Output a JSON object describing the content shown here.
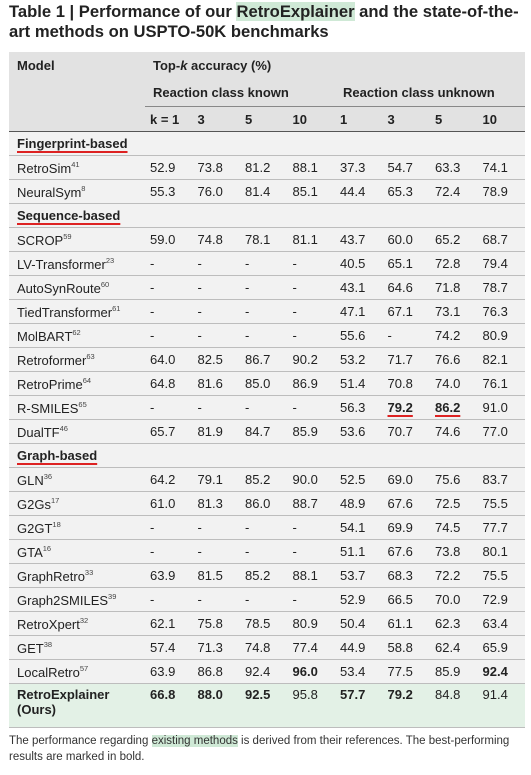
{
  "title": {
    "parts": [
      "Table 1 | Performance of our ",
      "RetroExplainer",
      " and the state-of-the-art methods on USPTO-50K benchmarks"
    ]
  },
  "header": {
    "model": "Model",
    "topk": [
      "Top-",
      "k",
      " accuracy (%)"
    ],
    "known": "Reaction class known",
    "unknown": "Reaction class unknown",
    "ks": [
      "k = 1",
      "3",
      "5",
      "10",
      "1",
      "3",
      "5",
      "10"
    ]
  },
  "groups": [
    {
      "name": "Fingerprint-based",
      "rows": [
        {
          "model": "RetroSim",
          "ref": "41",
          "values": [
            "52.9",
            "73.8",
            "81.2",
            "88.1",
            "37.3",
            "54.7",
            "63.3",
            "74.1"
          ]
        },
        {
          "model": "NeuralSym",
          "ref": "8",
          "values": [
            "55.3",
            "76.0",
            "81.4",
            "85.1",
            "44.4",
            "65.3",
            "72.4",
            "78.9"
          ]
        }
      ]
    },
    {
      "name": "Sequence-based",
      "rows": [
        {
          "model": "SCROP",
          "ref": "59",
          "values": [
            "59.0",
            "74.8",
            "78.1",
            "81.1",
            "43.7",
            "60.0",
            "65.2",
            "68.7"
          ]
        },
        {
          "model": "LV-Transformer",
          "ref": "23",
          "values": [
            "-",
            "-",
            "-",
            "-",
            "40.5",
            "65.1",
            "72.8",
            "79.4"
          ]
        },
        {
          "model": "AutoSynRoute",
          "ref": "60",
          "values": [
            "-",
            "-",
            "-",
            "-",
            "43.1",
            "64.6",
            "71.8",
            "78.7"
          ]
        },
        {
          "model": "TiedTransformer",
          "ref": "61",
          "values": [
            "-",
            "-",
            "-",
            "-",
            "47.1",
            "67.1",
            "73.1",
            "76.3"
          ]
        },
        {
          "model": "MolBART",
          "ref": "62",
          "values": [
            "-",
            "-",
            "-",
            "-",
            "55.6",
            "-",
            "74.2",
            "80.9"
          ]
        },
        {
          "model": "Retroformer",
          "ref": "63",
          "values": [
            "64.0",
            "82.5",
            "86.7",
            "90.2",
            "53.2",
            "71.7",
            "76.6",
            "82.1"
          ]
        },
        {
          "model": "RetroPrime",
          "ref": "64",
          "values": [
            "64.8",
            "81.6",
            "85.0",
            "86.9",
            "51.4",
            "70.8",
            "74.0",
            "76.1"
          ]
        },
        {
          "model": "R-SMILES",
          "ref": "65",
          "values": [
            "-",
            "-",
            "-",
            "-",
            "56.3",
            "79.2",
            "86.2",
            "91.0"
          ],
          "bold": [
            5,
            6
          ],
          "underline": [
            5,
            6
          ]
        },
        {
          "model": "DualTF",
          "ref": "46",
          "values": [
            "65.7",
            "81.9",
            "84.7",
            "85.9",
            "53.6",
            "70.7",
            "74.6",
            "77.0"
          ]
        }
      ]
    },
    {
      "name": "Graph-based",
      "rows": [
        {
          "model": "GLN",
          "ref": "36",
          "values": [
            "64.2",
            "79.1",
            "85.2",
            "90.0",
            "52.5",
            "69.0",
            "75.6",
            "83.7"
          ]
        },
        {
          "model": "G2Gs",
          "ref": "17",
          "values": [
            "61.0",
            "81.3",
            "86.0",
            "88.7",
            "48.9",
            "67.6",
            "72.5",
            "75.5"
          ]
        },
        {
          "model": "G2GT",
          "ref": "18",
          "values": [
            "-",
            "-",
            "-",
            "-",
            "54.1",
            "69.9",
            "74.5",
            "77.7"
          ]
        },
        {
          "model": "GTA",
          "ref": "16",
          "values": [
            "-",
            "-",
            "-",
            "-",
            "51.1",
            "67.6",
            "73.8",
            "80.1"
          ]
        },
        {
          "model": "GraphRetro",
          "ref": "33",
          "values": [
            "63.9",
            "81.5",
            "85.2",
            "88.1",
            "53.7",
            "68.3",
            "72.2",
            "75.5"
          ]
        },
        {
          "model": "Graph2SMILES",
          "ref": "39",
          "values": [
            "-",
            "-",
            "-",
            "-",
            "52.9",
            "66.5",
            "70.0",
            "72.9"
          ]
        },
        {
          "model": "RetroXpert",
          "ref": "32",
          "values": [
            "62.1",
            "75.8",
            "78.5",
            "80.9",
            "50.4",
            "61.1",
            "62.3",
            "63.4"
          ]
        },
        {
          "model": "GET",
          "ref": "38",
          "values": [
            "57.4",
            "71.3",
            "74.8",
            "77.4",
            "44.9",
            "58.8",
            "62.4",
            "65.9"
          ]
        },
        {
          "model": "LocalRetro",
          "ref": "57",
          "values": [
            "63.9",
            "86.8",
            "92.4",
            "96.0",
            "53.4",
            "77.5",
            "85.9",
            "92.4"
          ],
          "bold": [
            3,
            7
          ]
        },
        {
          "model": "RetroExplainer",
          "note": "(Ours)",
          "values": [
            "66.8",
            "88.0",
            "92.5",
            "95.8",
            "57.7",
            "79.2",
            "84.8",
            "91.4"
          ],
          "bold": [
            0,
            1,
            2,
            4,
            5
          ],
          "highlight": true
        }
      ]
    }
  ],
  "footnote": {
    "parts": [
      "The performance regarding ",
      "existing methods",
      " is derived from their references. The best-performing results are marked in bold."
    ]
  }
}
